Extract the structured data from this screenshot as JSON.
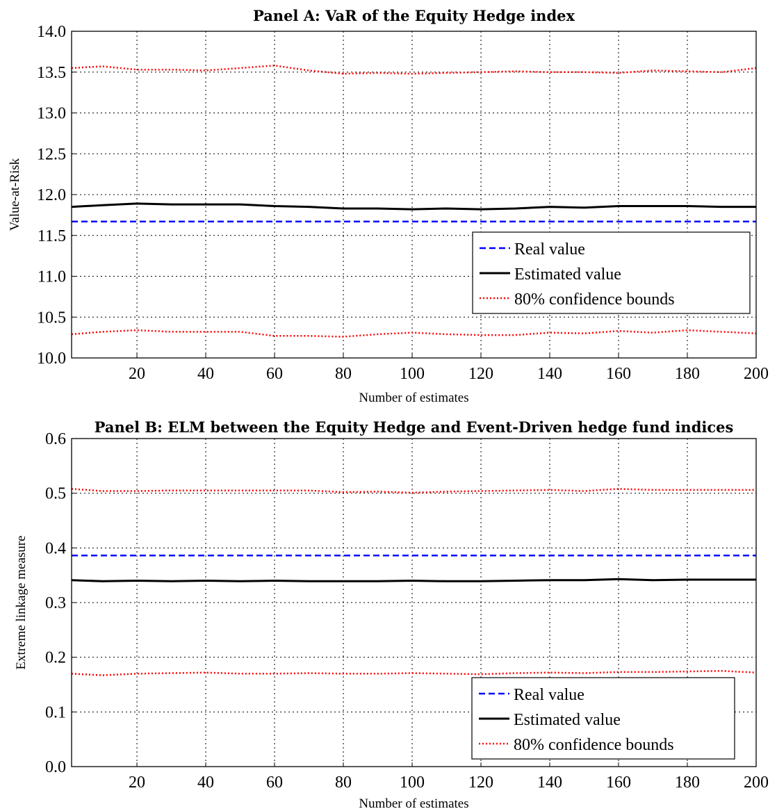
{
  "chart_data": [
    {
      "type": "line",
      "title": "Panel A: VaR of the Equity Hedge index",
      "xlabel": "Number of estimates",
      "ylabel": "Value-at-Risk",
      "xlim": [
        1,
        200
      ],
      "ylim": [
        10.0,
        14.0
      ],
      "x_ticks": [
        "20",
        "40",
        "60",
        "80",
        "100",
        "120",
        "140",
        "160",
        "180",
        "200"
      ],
      "y_ticks": [
        "10.0",
        "10.5",
        "11.0",
        "11.5",
        "12.0",
        "12.5",
        "13.0",
        "13.5",
        "14.0"
      ],
      "grid": true,
      "legend_position": "lower-right",
      "x": [
        1,
        10,
        20,
        30,
        40,
        50,
        60,
        70,
        80,
        90,
        100,
        110,
        120,
        130,
        140,
        150,
        160,
        170,
        180,
        190,
        200
      ],
      "series": [
        {
          "name": "Real value",
          "color": "#0000ff",
          "style": "dashed",
          "values": [
            11.67,
            11.67,
            11.67,
            11.67,
            11.67,
            11.67,
            11.67,
            11.67,
            11.67,
            11.67,
            11.67,
            11.67,
            11.67,
            11.67,
            11.67,
            11.67,
            11.67,
            11.67,
            11.67,
            11.67,
            11.67
          ]
        },
        {
          "name": "Estimated value",
          "color": "#000000",
          "style": "solid",
          "values": [
            11.85,
            11.87,
            11.89,
            11.88,
            11.88,
            11.88,
            11.86,
            11.85,
            11.83,
            11.83,
            11.82,
            11.83,
            11.82,
            11.83,
            11.85,
            11.84,
            11.86,
            11.86,
            11.86,
            11.85,
            11.85
          ]
        },
        {
          "name": "80% confidence bounds",
          "color": "#ff0000",
          "style": "dotted",
          "values": [
            13.55,
            13.57,
            13.53,
            13.53,
            13.52,
            13.55,
            13.58,
            13.52,
            13.48,
            13.49,
            13.48,
            13.49,
            13.5,
            13.51,
            13.5,
            13.5,
            13.49,
            13.52,
            13.51,
            13.5,
            13.55
          ]
        },
        {
          "name": "",
          "color": "#ff0000",
          "style": "dotted",
          "values": [
            10.29,
            10.32,
            10.34,
            10.32,
            10.32,
            10.32,
            10.27,
            10.27,
            10.26,
            10.29,
            10.31,
            10.29,
            10.28,
            10.28,
            10.31,
            10.3,
            10.33,
            10.31,
            10.34,
            10.32,
            10.3
          ]
        }
      ]
    },
    {
      "type": "line",
      "title": "Panel B: ELM between the Equity Hedge and Event-Driven hedge fund indices",
      "xlabel": "Number of estimates",
      "ylabel": "Extreme linkage measure",
      "xlim": [
        1,
        200
      ],
      "ylim": [
        0.0,
        0.6
      ],
      "x_ticks": [
        "20",
        "40",
        "60",
        "80",
        "100",
        "120",
        "140",
        "160",
        "180",
        "200"
      ],
      "y_ticks": [
        "0.0",
        "0.1",
        "0.2",
        "0.3",
        "0.4",
        "0.5",
        "0.6"
      ],
      "grid": true,
      "legend_position": "lower-right",
      "x": [
        1,
        10,
        20,
        30,
        40,
        50,
        60,
        70,
        80,
        90,
        100,
        110,
        120,
        130,
        140,
        150,
        160,
        170,
        180,
        190,
        200
      ],
      "series": [
        {
          "name": "Real value",
          "color": "#0000ff",
          "style": "dashed",
          "values": [
            0.386,
            0.386,
            0.386,
            0.386,
            0.386,
            0.386,
            0.386,
            0.386,
            0.386,
            0.386,
            0.386,
            0.386,
            0.386,
            0.386,
            0.386,
            0.386,
            0.386,
            0.386,
            0.386,
            0.386,
            0.386
          ]
        },
        {
          "name": "Estimated value",
          "color": "#000000",
          "style": "solid",
          "values": [
            0.341,
            0.339,
            0.34,
            0.339,
            0.34,
            0.339,
            0.34,
            0.339,
            0.339,
            0.339,
            0.34,
            0.339,
            0.339,
            0.34,
            0.341,
            0.341,
            0.343,
            0.341,
            0.342,
            0.342,
            0.342
          ]
        },
        {
          "name": "80% confidence bounds",
          "color": "#ff0000",
          "style": "dotted",
          "values": [
            0.508,
            0.504,
            0.504,
            0.505,
            0.505,
            0.505,
            0.505,
            0.505,
            0.502,
            0.503,
            0.501,
            0.503,
            0.504,
            0.505,
            0.506,
            0.504,
            0.508,
            0.506,
            0.506,
            0.506,
            0.506
          ]
        },
        {
          "name": "",
          "color": "#ff0000",
          "style": "dotted",
          "values": [
            0.17,
            0.167,
            0.17,
            0.171,
            0.172,
            0.17,
            0.17,
            0.171,
            0.17,
            0.17,
            0.171,
            0.17,
            0.169,
            0.171,
            0.172,
            0.171,
            0.173,
            0.173,
            0.174,
            0.175,
            0.172
          ]
        }
      ]
    }
  ]
}
